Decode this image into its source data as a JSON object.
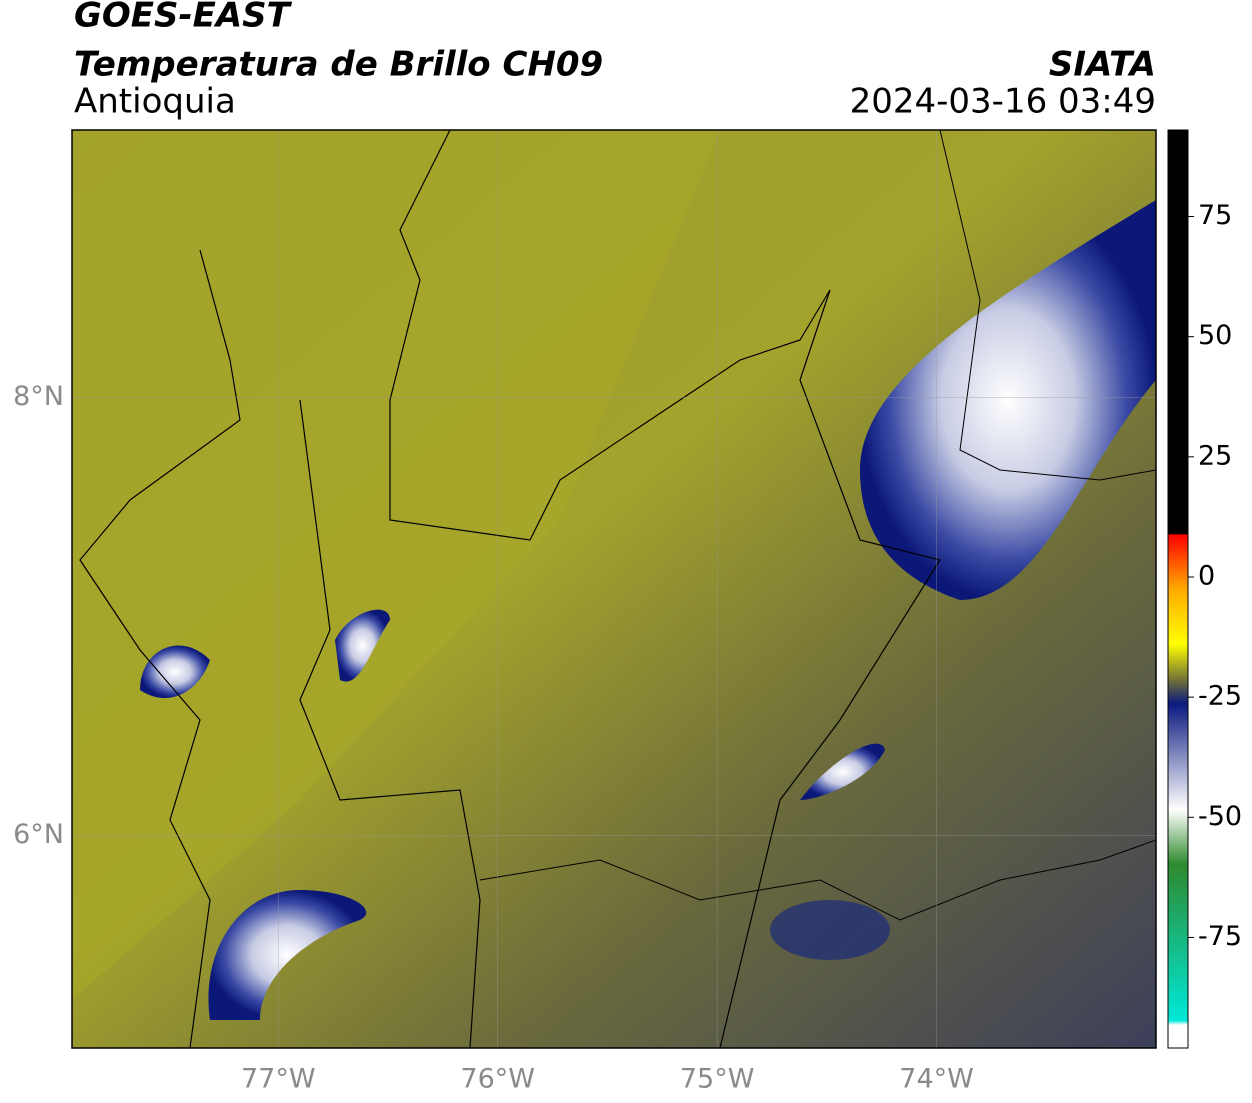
{
  "header": {
    "title": "GOES-EAST",
    "subtitle": "Temperatura de Brillo CH09",
    "region": "Antioquia",
    "source": "SIATA",
    "datetime": "2024-03-16 03:49"
  },
  "map": {
    "xlim": [
      -77.94,
      -73.0
    ],
    "ylim": [
      5.03,
      9.22
    ],
    "xticks": [
      {
        "value": -77,
        "label": "77°W"
      },
      {
        "value": -76,
        "label": "76°W"
      },
      {
        "value": -75,
        "label": "75°W"
      },
      {
        "value": -74,
        "label": "74°W"
      }
    ],
    "yticks": [
      {
        "value": 6,
        "label": "6°N"
      },
      {
        "value": 8,
        "label": "8°N"
      }
    ],
    "grid": true
  },
  "colorbar": {
    "lim": [
      -98,
      93
    ],
    "ticks": [
      -75,
      -50,
      -25,
      0,
      25,
      50,
      75
    ]
  }
}
